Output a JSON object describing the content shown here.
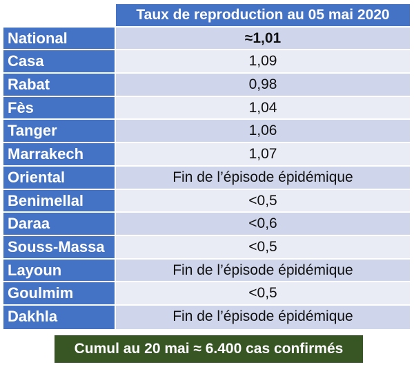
{
  "table": {
    "header": "Taux de reproduction au 05 mai 2020",
    "rows": [
      {
        "region": "National",
        "value": "≈1,01"
      },
      {
        "region": "Casa",
        "value": "1,09"
      },
      {
        "region": "Rabat",
        "value": "0,98"
      },
      {
        "region": "Fès",
        "value": "1,04"
      },
      {
        "region": "Tanger",
        "value": "1,06"
      },
      {
        "region": "Marrakech",
        "value": "1,07"
      },
      {
        "region": "Oriental",
        "value": "Fin de l’épisode épidémique"
      },
      {
        "region": "Benimellal",
        "value": "<0,5"
      },
      {
        "region": "Daraa",
        "value": "<0,6"
      },
      {
        "region": "Souss-Massa",
        "value": "<0,5"
      },
      {
        "region": "Layoun",
        "value": "Fin de l’épisode épidémique"
      },
      {
        "region": "Goulmim",
        "value": "<0,5"
      },
      {
        "region": "Dakhla",
        "value": "Fin de l’épisode épidémique"
      }
    ]
  },
  "summary": "Cumul au 20 mai ≈ 6.400 cas confirmés",
  "colors": {
    "header_blue": "#4472c4",
    "row_light": "#e9ebf5",
    "row_dark": "#cfd5ea",
    "summary_green": "#375623"
  }
}
